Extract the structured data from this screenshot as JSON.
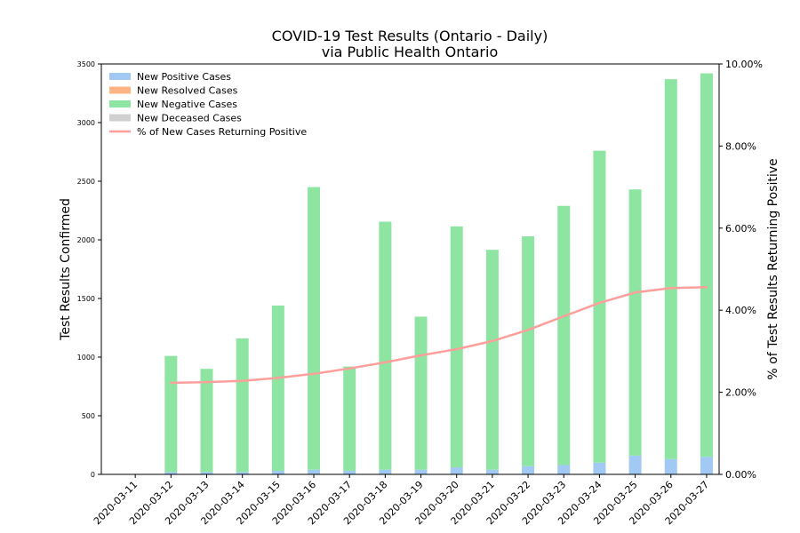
{
  "chart_data": {
    "type": "bar",
    "title": "COVID-19 Test Results (Ontario - Daily)",
    "subtitle": "via Public Health Ontario",
    "xlabel": "",
    "ylabel": "Test Results Confirmed",
    "y2label": "% of Test Results Returning Positive",
    "stacked": true,
    "ylim": [
      0,
      3500
    ],
    "y2lim": [
      0,
      10
    ],
    "yticks": [
      "0",
      "500",
      "1000",
      "1500",
      "2000",
      "2500",
      "3000",
      "3500"
    ],
    "y2ticks": [
      "0.00%",
      "2.00%",
      "4.00%",
      "6.00%",
      "8.00%",
      "10.00%"
    ],
    "legend_position": "top-left",
    "grid": false,
    "categories": [
      "2020-03-11",
      "2020-03-12",
      "2020-03-13",
      "2020-03-14",
      "2020-03-15",
      "2020-03-16",
      "2020-03-17",
      "2020-03-18",
      "2020-03-19",
      "2020-03-20",
      "2020-03-21",
      "2020-03-22",
      "2020-03-23",
      "2020-03-24",
      "2020-03-25",
      "2020-03-26",
      "2020-03-27"
    ],
    "series": [
      {
        "name": "New Positive Cases",
        "kind": "bar",
        "color": "#a1c9f4",
        "values": [
          0,
          20,
          20,
          20,
          30,
          40,
          30,
          40,
          40,
          60,
          40,
          70,
          80,
          100,
          160,
          130,
          150
        ]
      },
      {
        "name": "New Resolved Cases",
        "kind": "bar",
        "color": "#ffb482",
        "values": [
          0,
          0,
          0,
          0,
          0,
          0,
          0,
          0,
          0,
          0,
          0,
          0,
          0,
          0,
          0,
          0,
          0
        ]
      },
      {
        "name": "New Negative Cases",
        "kind": "bar",
        "color": "#8de5a1",
        "values": [
          0,
          990,
          880,
          1140,
          1410,
          2410,
          890,
          2115,
          1305,
          2055,
          1875,
          1960,
          2210,
          2660,
          2270,
          3240,
          3270
        ]
      },
      {
        "name": "New Deceased Cases",
        "kind": "bar",
        "color": "#d0d0d0",
        "values": [
          0,
          0,
          0,
          0,
          0,
          0,
          0,
          0,
          0,
          0,
          0,
          0,
          0,
          0,
          0,
          0,
          0
        ]
      },
      {
        "name": "% of New Cases Returning Positive",
        "kind": "line",
        "axis": "right",
        "color": "#ff9f9b",
        "values": [
          null,
          2.23,
          2.25,
          2.28,
          2.35,
          2.45,
          2.58,
          2.73,
          2.9,
          3.05,
          3.25,
          3.52,
          3.85,
          4.18,
          4.43,
          4.54,
          4.56
        ]
      }
    ]
  }
}
